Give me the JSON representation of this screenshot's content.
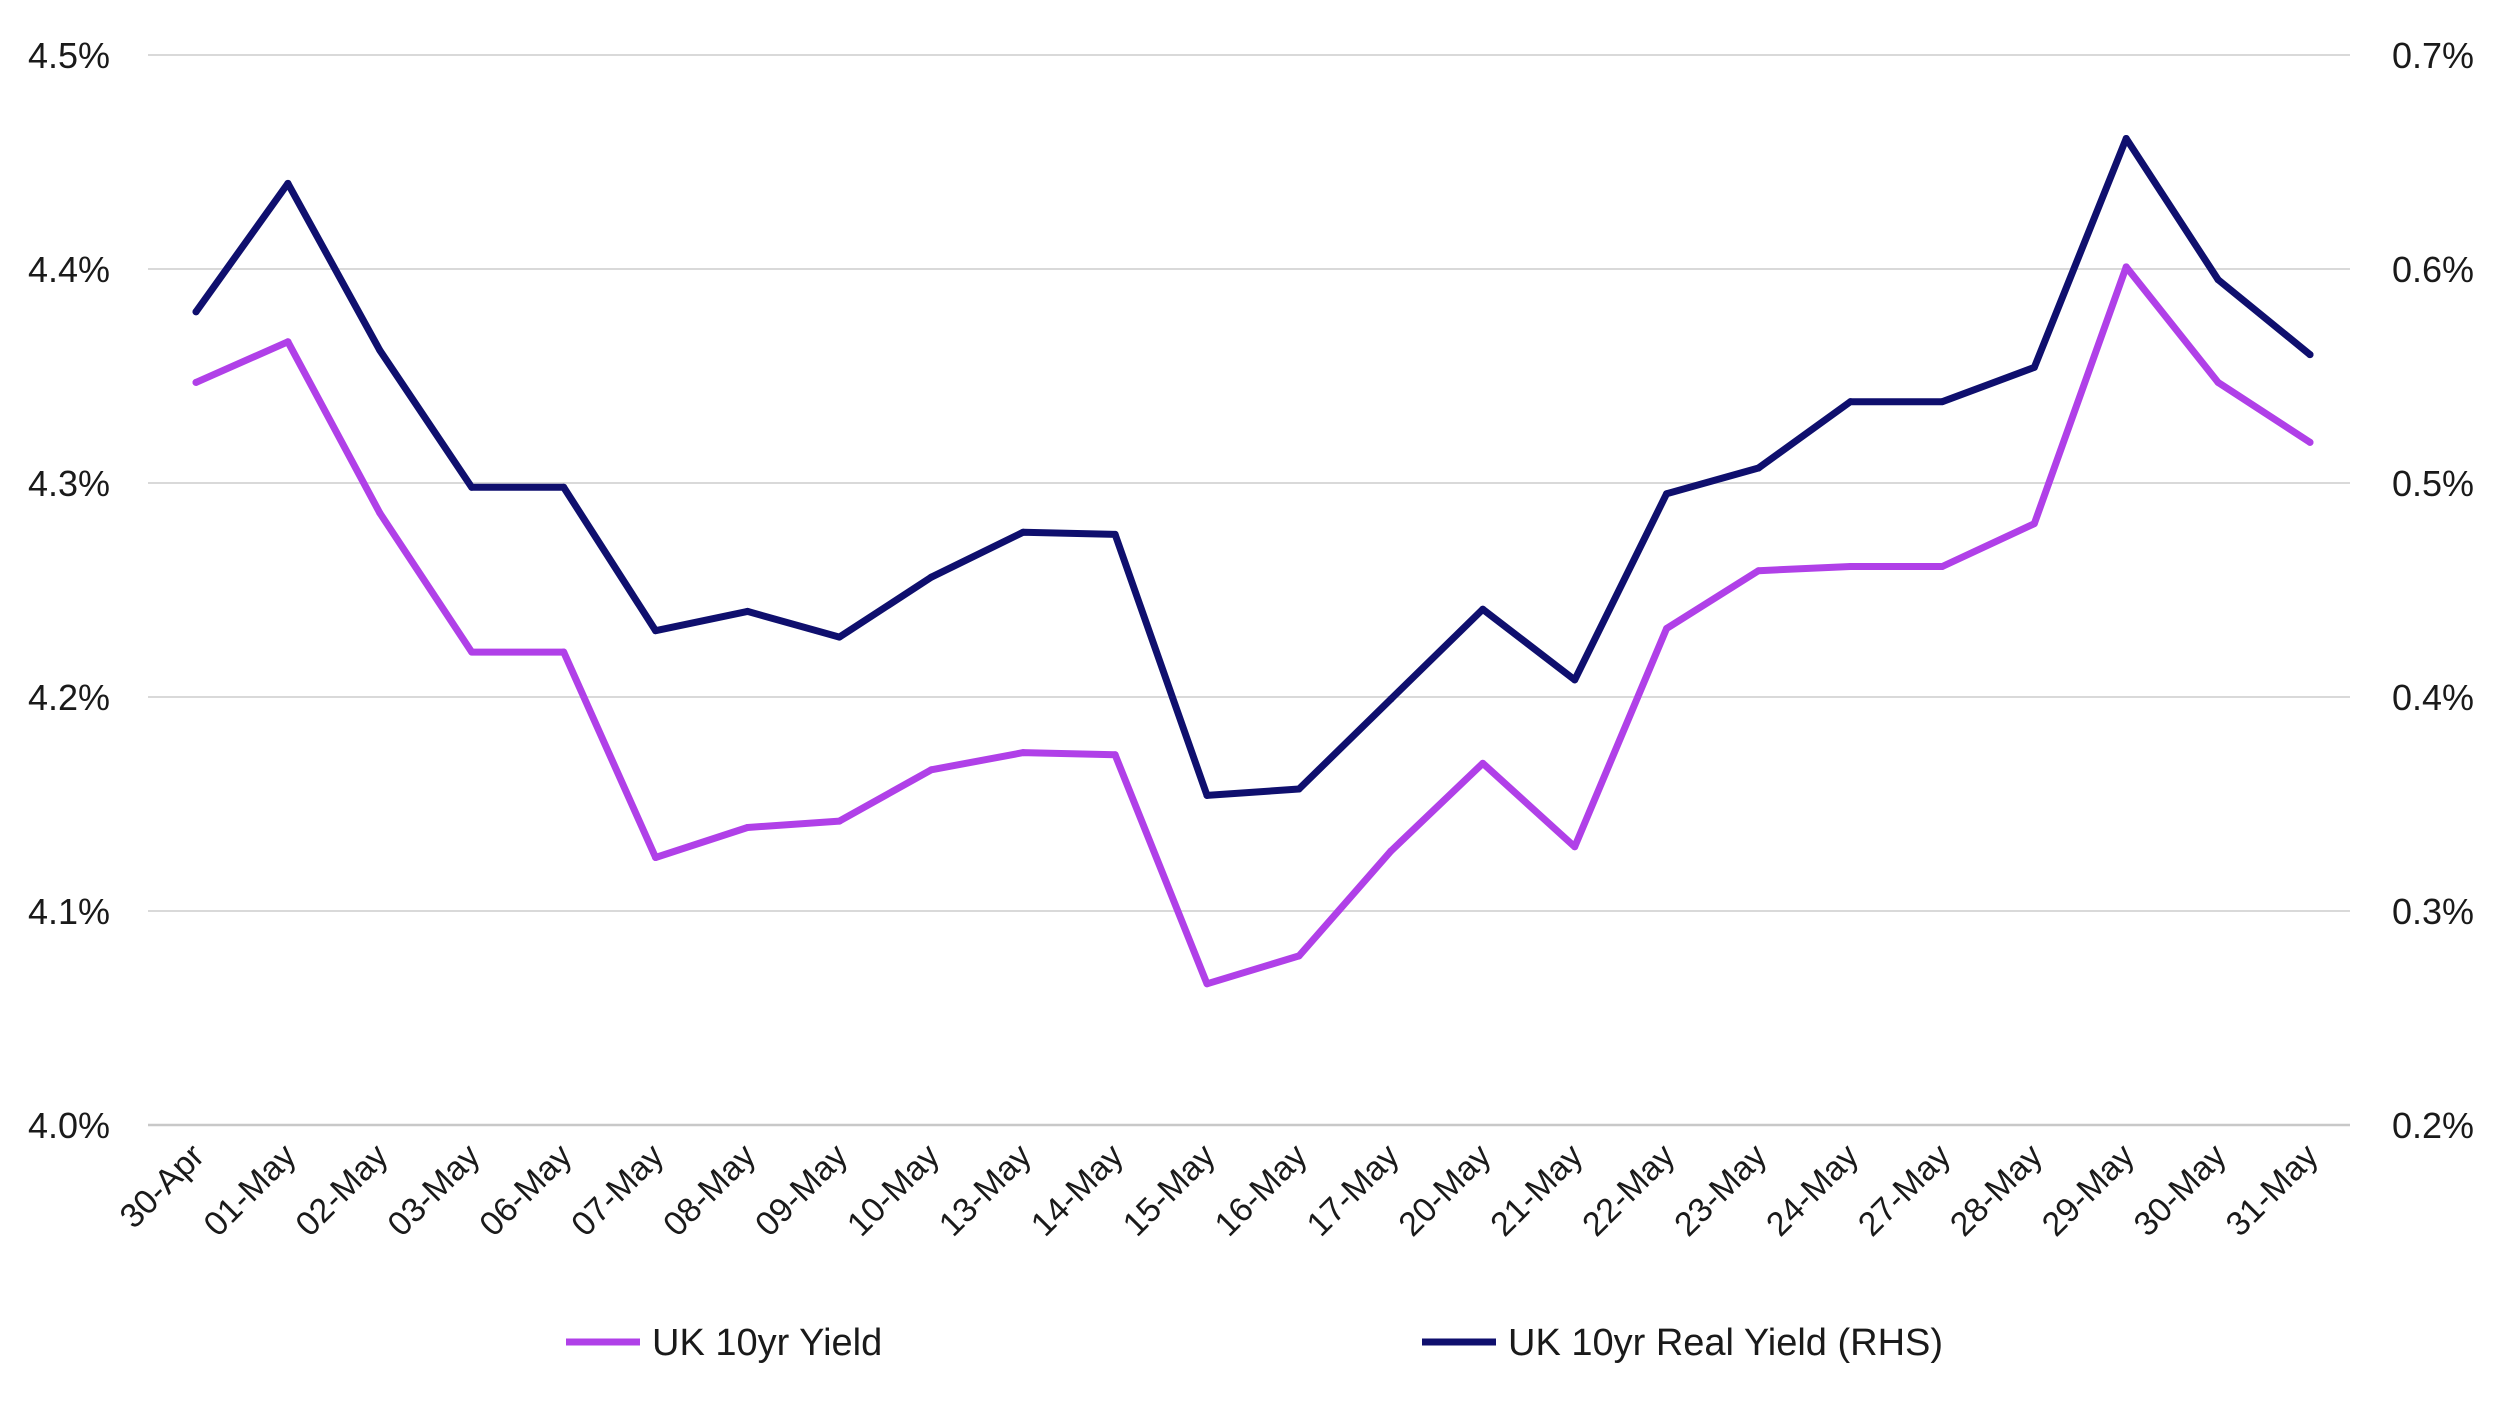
{
  "chart_data": {
    "type": "line",
    "categories": [
      "30-Apr",
      "01-May",
      "02-May",
      "03-May",
      "06-May",
      "07-May",
      "08-May",
      "09-May",
      "10-May",
      "13-May",
      "14-May",
      "15-May",
      "16-May",
      "17-May",
      "20-May",
      "21-May",
      "22-May",
      "23-May",
      "24-May",
      "27-May",
      "28-May",
      "29-May",
      "30-May",
      "31-May"
    ],
    "y_left": {
      "lim": [
        4.0,
        4.5
      ],
      "ticks": [
        4.0,
        4.1,
        4.2,
        4.3,
        4.4,
        4.5
      ],
      "tick_labels": [
        "4.0%",
        "4.1%",
        "4.2%",
        "4.3%",
        "4.4%",
        "4.5%"
      ]
    },
    "y_right": {
      "lim": [
        0.2,
        0.7
      ],
      "ticks": [
        0.2,
        0.3,
        0.4,
        0.5,
        0.6,
        0.7
      ],
      "tick_labels": [
        "0.2%",
        "0.3%",
        "0.4%",
        "0.5%",
        "0.6%",
        "0.7%"
      ]
    },
    "grid": true,
    "legend_position": "bottom",
    "series": [
      {
        "name": "UK 10yr Yield",
        "axis": "left",
        "color": "#b040e8",
        "values": [
          4.347,
          4.366,
          4.286,
          4.221,
          4.221,
          4.125,
          4.139,
          4.142,
          4.166,
          4.174,
          4.173,
          4.066,
          4.079,
          4.128,
          4.169,
          4.13,
          4.232,
          4.259,
          4.261,
          4.261,
          4.281,
          4.401,
          4.347,
          4.319
        ]
      },
      {
        "name": "UK 10yr Real Yield (RHS)",
        "axis": "right",
        "color": "#0f0f6e",
        "values": [
          0.58,
          0.64,
          0.562,
          0.498,
          0.498,
          0.431,
          0.44,
          0.428,
          0.456,
          0.477,
          0.476,
          0.354,
          0.357,
          0.399,
          0.441,
          0.408,
          0.495,
          0.507,
          0.538,
          0.538,
          0.554,
          0.661,
          0.595,
          0.56
        ]
      }
    ]
  }
}
